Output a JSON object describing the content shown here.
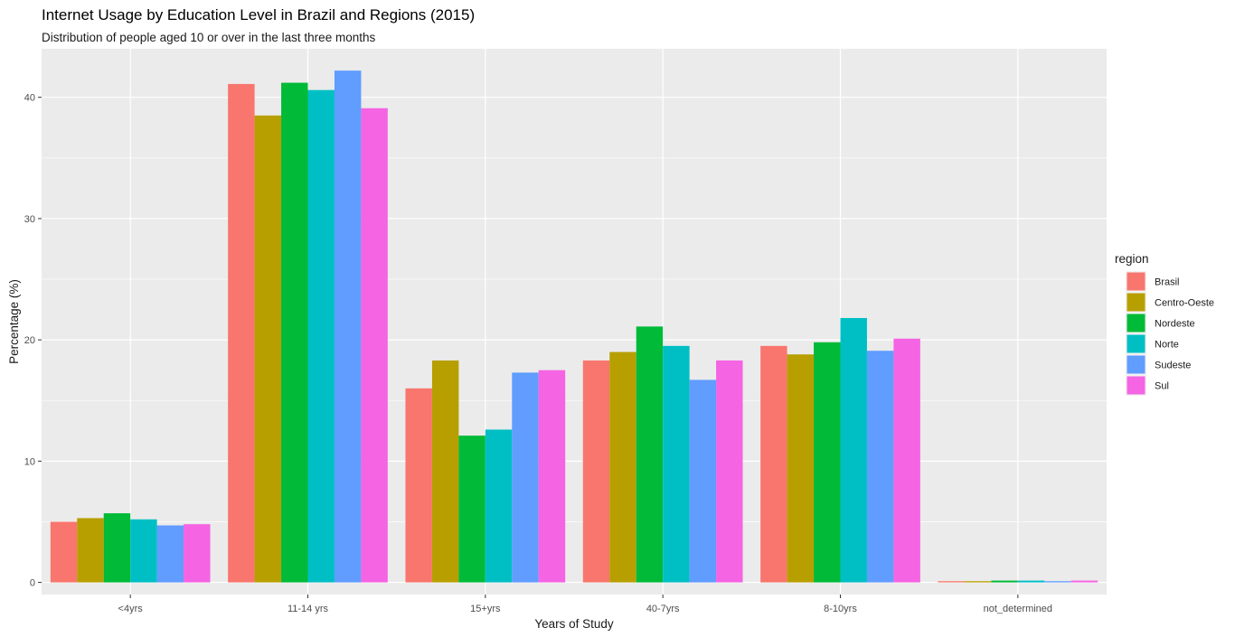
{
  "chart_data": {
    "type": "bar",
    "title": "Internet Usage by Education Level in Brazil and Regions (2015)",
    "subtitle": "Distribution of people aged 10 or over in the last three months",
    "xlabel": "Years of Study",
    "ylabel": "Percentage (%)",
    "ylim": [
      -1,
      44
    ],
    "yticks": [
      0,
      10,
      20,
      30,
      40
    ],
    "grid": true,
    "legend_title": "region",
    "legend_position": "right",
    "categories": [
      "<4yrs",
      "11-14 yrs",
      "15+yrs",
      "40-7yrs",
      "8-10yrs",
      "not_determined"
    ],
    "series": [
      {
        "name": "Brasil",
        "color": "#F8766D",
        "values": [
          5.0,
          41.1,
          16.0,
          18.3,
          19.5,
          0.1
        ]
      },
      {
        "name": "Centro-Oeste",
        "color": "#B79F00",
        "values": [
          5.3,
          38.5,
          18.3,
          19.0,
          18.8,
          0.1
        ]
      },
      {
        "name": "Nordeste",
        "color": "#00BA38",
        "values": [
          5.7,
          41.2,
          12.1,
          21.1,
          19.8,
          0.15
        ]
      },
      {
        "name": "Norte",
        "color": "#00BFC4",
        "values": [
          5.2,
          40.6,
          12.6,
          19.5,
          21.8,
          0.15
        ]
      },
      {
        "name": "Sudeste",
        "color": "#619CFF",
        "values": [
          4.7,
          42.2,
          17.3,
          16.7,
          19.1,
          0.1
        ]
      },
      {
        "name": "Sul",
        "color": "#F564E3",
        "values": [
          4.8,
          39.1,
          17.5,
          18.3,
          20.1,
          0.15
        ]
      }
    ]
  }
}
